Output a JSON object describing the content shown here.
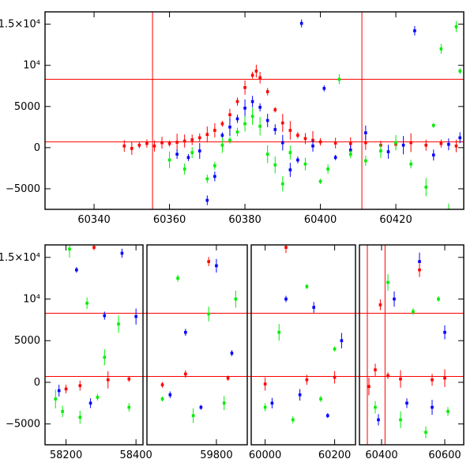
{
  "colors": {
    "red": "#ff0000",
    "green": "#00ee00",
    "blue": "#0000ff",
    "axis": "#000000",
    "background": "#ffffff"
  },
  "chart_data": [
    {
      "type": "scatter",
      "panel": "top",
      "xlim": [
        60327,
        60438
      ],
      "ylim": [
        -7500,
        16500
      ],
      "x_ticks": [
        {
          "value": 60340,
          "label": "60340"
        },
        {
          "value": 60360,
          "label": "60360"
        },
        {
          "value": 60380,
          "label": "60380"
        },
        {
          "value": 60400,
          "label": "60400"
        },
        {
          "value": 60420,
          "label": "60420"
        }
      ],
      "y_ticks": [
        {
          "value": 15000,
          "label": "1.5×10⁴"
        },
        {
          "value": 10000,
          "label": "10⁴"
        },
        {
          "value": 5000,
          "label": "5000"
        },
        {
          "value": 0,
          "label": "0"
        },
        {
          "value": -5000,
          "label": "−5000"
        }
      ],
      "reference_lines": {
        "horizontal": [
          8300,
          700
        ],
        "vertical": [
          60355.5,
          60411
        ]
      },
      "series": [
        {
          "color_key": "red",
          "points": [
            [
              60348,
              200
            ],
            [
              60350,
              -100
            ],
            [
              60352,
              300
            ],
            [
              60354,
              500
            ],
            [
              60356,
              200
            ],
            [
              60358,
              600
            ],
            [
              60360,
              500
            ],
            [
              60362,
              650
            ],
            [
              60364,
              800
            ],
            [
              60366,
              950
            ],
            [
              60368,
              1200
            ],
            [
              60370,
              1600
            ],
            [
              60372,
              2100
            ],
            [
              60374,
              2900
            ],
            [
              60376,
              4000
            ],
            [
              60378,
              5600
            ],
            [
              60380,
              7300
            ],
            [
              60382,
              8800
            ],
            [
              60383,
              9300
            ],
            [
              60384,
              8500
            ],
            [
              60386,
              6800
            ],
            [
              60388,
              4600
            ],
            [
              60390,
              3000
            ],
            [
              60392,
              2100
            ],
            [
              60394,
              1500
            ],
            [
              60396,
              1100
            ],
            [
              60398,
              900
            ],
            [
              60400,
              700
            ],
            [
              60404,
              550
            ],
            [
              60408,
              500
            ],
            [
              60412,
              600
            ],
            [
              60416,
              300
            ],
            [
              60420,
              400
            ],
            [
              60424,
              600
            ],
            [
              60428,
              300
            ],
            [
              60432,
              500
            ],
            [
              60436,
              200
            ]
          ]
        },
        {
          "color_key": "blue",
          "points": [
            [
              60362,
              -800
            ],
            [
              60365,
              -1200
            ],
            [
              60368,
              -400
            ],
            [
              60370,
              -6400
            ],
            [
              60372,
              -3500
            ],
            [
              60374,
              1500
            ],
            [
              60376,
              2500
            ],
            [
              60378,
              3500
            ],
            [
              60380,
              4800
            ],
            [
              60382,
              5600
            ],
            [
              60384,
              4900
            ],
            [
              60386,
              3300
            ],
            [
              60388,
              2200
            ],
            [
              60390,
              600
            ],
            [
              60392,
              -2700
            ],
            [
              60394,
              -1500
            ],
            [
              60395,
              15100
            ],
            [
              60398,
              200
            ],
            [
              60401,
              7200
            ],
            [
              60404,
              -1200
            ],
            [
              60408,
              -300
            ],
            [
              60412,
              1800
            ],
            [
              60418,
              -500
            ],
            [
              60422,
              300
            ],
            [
              60425,
              14200
            ],
            [
              60430,
              -900
            ],
            [
              60434,
              400
            ],
            [
              60437,
              1200
            ]
          ]
        },
        {
          "color_key": "green",
          "points": [
            [
              60360,
              -1500
            ],
            [
              60364,
              -2600
            ],
            [
              60366,
              -600
            ],
            [
              60370,
              -3800
            ],
            [
              60372,
              -2200
            ],
            [
              60374,
              300
            ],
            [
              60376,
              900
            ],
            [
              60378,
              1900
            ],
            [
              60380,
              2900
            ],
            [
              60382,
              3800
            ],
            [
              60384,
              2600
            ],
            [
              60386,
              -800
            ],
            [
              60388,
              -2100
            ],
            [
              60390,
              -4400
            ],
            [
              60392,
              -600
            ],
            [
              60396,
              -2000
            ],
            [
              60400,
              -4100
            ],
            [
              60402,
              -2600
            ],
            [
              60405,
              8300
            ],
            [
              60408,
              -800
            ],
            [
              60412,
              -1600
            ],
            [
              60416,
              -400
            ],
            [
              60420,
              600
            ],
            [
              60424,
              -2000
            ],
            [
              60428,
              -4800
            ],
            [
              60430,
              2700
            ],
            [
              60432,
              12000
            ],
            [
              60434,
              -7600
            ],
            [
              60436,
              14700
            ],
            [
              60437,
              9300
            ]
          ]
        }
      ]
    },
    {
      "type": "scatter",
      "panel": "bottom",
      "segments": [
        {
          "xlim": [
            58140,
            58420
          ],
          "x_ticks": [
            {
              "value": 58200,
              "label": "58200"
            },
            {
              "value": 58400,
              "label": "58400"
            }
          ]
        },
        {
          "xlim": [
            59620,
            59880
          ],
          "x_ticks": [
            {
              "value": 59800,
              "label": "59800"
            }
          ]
        },
        {
          "xlim": [
            59960,
            60260
          ],
          "x_ticks": [
            {
              "value": 60000,
              "label": "60000"
            },
            {
              "value": 60200,
              "label": "60200"
            }
          ]
        },
        {
          "xlim": [
            60330,
            60660
          ],
          "x_ticks": [
            {
              "value": 60400,
              "label": "60400"
            },
            {
              "value": 60600,
              "label": "60600"
            }
          ]
        }
      ],
      "ylim": [
        -7500,
        16500
      ],
      "y_ticks": [
        {
          "value": 15000,
          "label": "1.5×10⁴"
        },
        {
          "value": 10000,
          "label": "10⁴"
        },
        {
          "value": 5000,
          "label": "5000"
        },
        {
          "value": 0,
          "label": "0"
        },
        {
          "value": -5000,
          "label": "−5000"
        }
      ],
      "reference_lines": {
        "horizontal": [
          8300,
          700
        ],
        "vertical": [
          60355,
          60411
        ]
      },
      "series": [
        {
          "color_key": "green",
          "points": [
            [
              58170,
              -2000
            ],
            [
              58190,
              -3500
            ],
            [
              58210,
              16000
            ],
            [
              58240,
              -4200
            ],
            [
              58260,
              9500
            ],
            [
              58290,
              -1800
            ],
            [
              58310,
              3000
            ],
            [
              58350,
              7000
            ],
            [
              58380,
              -3000
            ],
            [
              59660,
              -2000
            ],
            [
              59700,
              12500
            ],
            [
              59740,
              -4000
            ],
            [
              59780,
              8200
            ],
            [
              59820,
              -2500
            ],
            [
              59850,
              10000
            ],
            [
              60000,
              -3000
            ],
            [
              60040,
              6000
            ],
            [
              60080,
              -4500
            ],
            [
              60120,
              11500
            ],
            [
              60160,
              -2000
            ],
            [
              60200,
              4000
            ],
            [
              60380,
              -3000
            ],
            [
              60420,
              12000
            ],
            [
              60460,
              -4500
            ],
            [
              60500,
              8500
            ],
            [
              60540,
              -6000
            ],
            [
              60580,
              10000
            ],
            [
              60610,
              -3500
            ]
          ]
        },
        {
          "color_key": "blue",
          "points": [
            [
              58180,
              -1000
            ],
            [
              58230,
              13500
            ],
            [
              58270,
              -2500
            ],
            [
              58310,
              8000
            ],
            [
              58360,
              15500
            ],
            [
              58400,
              7900
            ],
            [
              59680,
              -1500
            ],
            [
              59720,
              6000
            ],
            [
              59760,
              -3000
            ],
            [
              59800,
              14000
            ],
            [
              59840,
              3500
            ],
            [
              60020,
              -2500
            ],
            [
              60060,
              10000
            ],
            [
              60100,
              -1500
            ],
            [
              60140,
              9000
            ],
            [
              60180,
              -4000
            ],
            [
              60220,
              5000
            ],
            [
              60390,
              -4500
            ],
            [
              60440,
              10000
            ],
            [
              60480,
              -2500
            ],
            [
              60520,
              14500
            ],
            [
              60560,
              -3000
            ],
            [
              60600,
              6000
            ]
          ]
        },
        {
          "color_key": "red",
          "points": [
            [
              58200,
              -800
            ],
            [
              58240,
              -400
            ],
            [
              58280,
              16200
            ],
            [
              58320,
              300
            ],
            [
              58380,
              400
            ],
            [
              59660,
              -300
            ],
            [
              59720,
              1000
            ],
            [
              59780,
              14500
            ],
            [
              59830,
              500
            ],
            [
              60000,
              -200
            ],
            [
              60060,
              16200
            ],
            [
              60120,
              300
            ],
            [
              60200,
              600
            ],
            [
              60360,
              -500
            ],
            [
              60380,
              1500
            ],
            [
              60396,
              9300
            ],
            [
              60420,
              800
            ],
            [
              60460,
              400
            ],
            [
              60520,
              13500
            ],
            [
              60560,
              300
            ],
            [
              60600,
              500
            ]
          ]
        }
      ]
    }
  ]
}
